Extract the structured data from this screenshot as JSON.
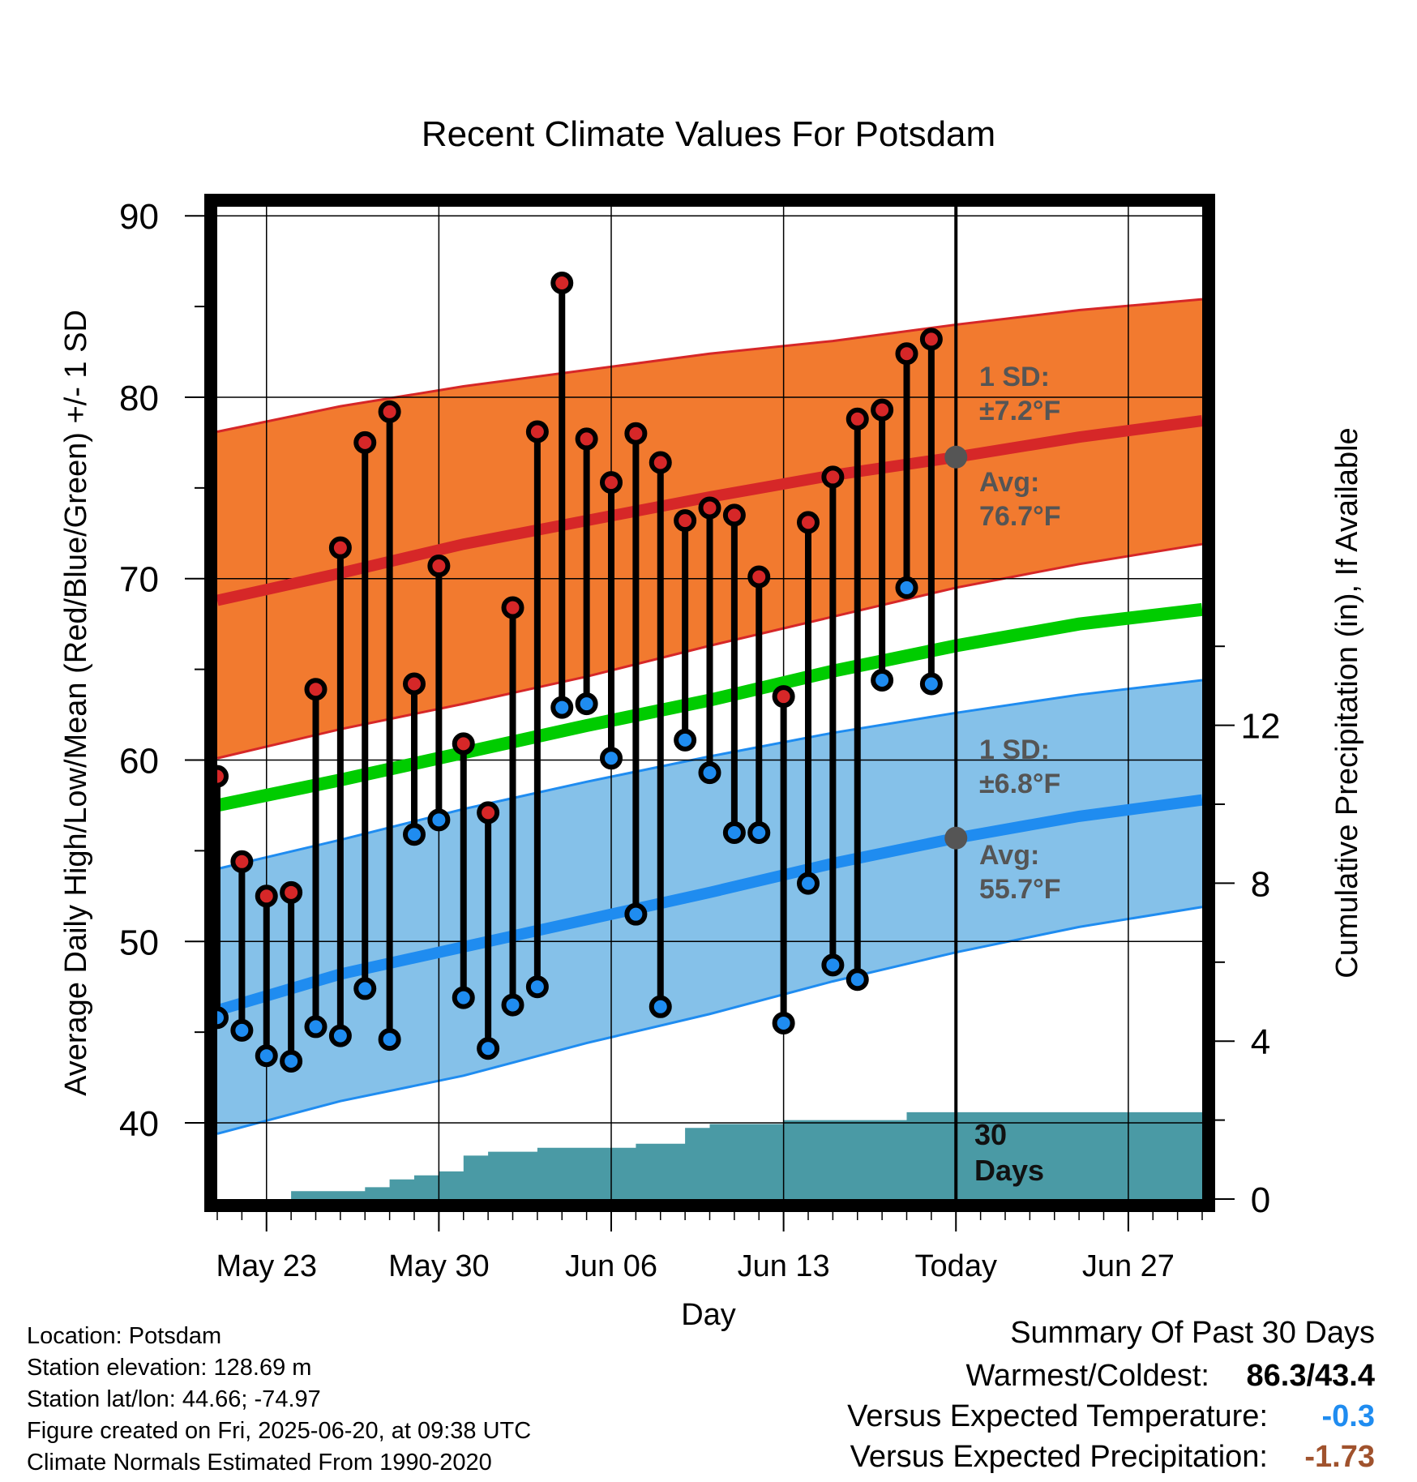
{
  "chart_data": {
    "type": "line",
    "title": "Recent Climate Values For Potsdam",
    "xlabel": "Day",
    "ylabel": "Average Daily High/Low/Mean (Red/Blue/Green) +/- 1 SD",
    "y2label": "Cumulative Precipitation (in), If Available",
    "ylim": [
      35.8,
      90.5
    ],
    "y2lim": [
      0,
      24
    ],
    "y_ticks": [
      "40",
      "50",
      "60",
      "70",
      "80",
      "90"
    ],
    "y2_ticks": [
      "0",
      "4",
      "8",
      "12"
    ],
    "x_start": "2025-05-21",
    "x_end": "2025-06-30",
    "x_tick_dates": [
      "2025-05-23",
      "2025-05-30",
      "2025-06-06",
      "2025-06-13",
      "2025-06-20",
      "2025-06-27"
    ],
    "x_tick_labels": [
      "May 23",
      "May 30",
      "Jun 06",
      "Jun 13",
      "Today",
      "Jun 27"
    ],
    "grid": true,
    "today": "2025-06-20",
    "observations": {
      "dates": [
        "2025-05-21",
        "2025-05-22",
        "2025-05-23",
        "2025-05-24",
        "2025-05-25",
        "2025-05-26",
        "2025-05-27",
        "2025-05-28",
        "2025-05-29",
        "2025-05-30",
        "2025-05-31",
        "2025-06-01",
        "2025-06-02",
        "2025-06-03",
        "2025-06-04",
        "2025-06-05",
        "2025-06-06",
        "2025-06-07",
        "2025-06-08",
        "2025-06-09",
        "2025-06-10",
        "2025-06-11",
        "2025-06-12",
        "2025-06-13",
        "2025-06-14",
        "2025-06-15",
        "2025-06-16",
        "2025-06-17",
        "2025-06-18",
        "2025-06-19"
      ],
      "highs": [
        59.1,
        54.4,
        52.5,
        52.7,
        63.9,
        71.7,
        77.5,
        79.2,
        64.2,
        70.7,
        60.9,
        57.1,
        68.4,
        78.1,
        86.3,
        77.7,
        75.3,
        78.0,
        76.4,
        73.2,
        73.9,
        73.5,
        70.1,
        63.5,
        73.1,
        75.6,
        78.8,
        79.3,
        82.4,
        83.2
      ],
      "lows": [
        45.8,
        45.1,
        43.7,
        43.4,
        45.3,
        44.8,
        47.4,
        44.6,
        55.9,
        56.7,
        46.9,
        44.1,
        46.5,
        47.5,
        62.9,
        63.1,
        60.1,
        51.5,
        46.4,
        61.1,
        59.3,
        56.0,
        56.0,
        45.5,
        53.2,
        48.7,
        47.9,
        64.4,
        69.5,
        64.2
      ]
    },
    "normals": {
      "dates": [
        "2025-05-21",
        "2025-05-26",
        "2025-05-31",
        "2025-06-05",
        "2025-06-10",
        "2025-06-15",
        "2025-06-20",
        "2025-06-25",
        "2025-06-30"
      ],
      "avg_high": [
        68.8,
        70.3,
        71.9,
        73.2,
        74.5,
        75.7,
        76.7,
        77.8,
        78.7
      ],
      "high_sd_upper": [
        78.1,
        79.5,
        80.6,
        81.5,
        82.4,
        83.1,
        84.0,
        84.8,
        85.4
      ],
      "high_sd_lower": [
        60.1,
        61.7,
        63.1,
        64.6,
        66.3,
        67.9,
        69.5,
        70.8,
        71.9
      ],
      "avg_mean": [
        57.5,
        58.9,
        60.4,
        61.9,
        63.3,
        64.9,
        66.3,
        67.5,
        68.3
      ],
      "avg_low": [
        46.2,
        48.2,
        49.7,
        51.2,
        52.7,
        54.3,
        55.7,
        56.9,
        57.8
      ],
      "low_sd_upper": [
        54.0,
        55.6,
        57.3,
        58.8,
        60.2,
        61.5,
        62.6,
        63.6,
        64.4
      ],
      "low_sd_lower": [
        39.4,
        41.2,
        42.6,
        44.4,
        46.0,
        47.8,
        49.4,
        50.8,
        51.9
      ]
    },
    "precipitation": {
      "dates": [
        "2025-05-21",
        "2025-05-24",
        "2025-05-27",
        "2025-05-28",
        "2025-05-29",
        "2025-05-30",
        "2025-05-31",
        "2025-06-01",
        "2025-06-03",
        "2025-06-05",
        "2025-06-07",
        "2025-06-08",
        "2025-06-09",
        "2025-06-10",
        "2025-06-12",
        "2025-06-13",
        "2025-06-14",
        "2025-06-16",
        "2025-06-17",
        "2025-06-18",
        "2025-06-19",
        "2025-06-30"
      ],
      "cumulative": [
        0.0,
        0.2,
        0.3,
        0.5,
        0.6,
        0.7,
        1.1,
        1.2,
        1.3,
        1.3,
        1.4,
        1.4,
        1.8,
        1.9,
        1.9,
        2.0,
        2.0,
        2.0,
        2.0,
        2.2,
        2.2,
        2.2
      ]
    },
    "annotations": {
      "high_sd_label": "1 SD:",
      "high_sd_value": "±7.2°F",
      "high_avg_label": "Avg:",
      "high_avg_value": "76.7°F",
      "high_avg": 76.7,
      "low_sd_label": "1 SD:",
      "low_sd_value": "±6.8°F",
      "low_avg_label": "Avg:",
      "low_avg_value": "55.7°F",
      "low_avg": 55.7,
      "days_label_1": "30",
      "days_label_2": "Days"
    },
    "colors": {
      "high_band": "#f27a2f",
      "high_line": "#d62728",
      "mean_line": "#00cc00",
      "low_band": "#85c1e9",
      "low_line": "#1f8cf0",
      "precip": "#4a9aa5",
      "high_marker": "#d62728",
      "low_marker": "#1f8cf0"
    }
  },
  "info": {
    "location": "Location: Potsdam",
    "elevation": "Station elevation: 128.69 m",
    "latlon": "Station lat/lon: 44.66; -74.97",
    "created": "Figure created on Fri, 2025-06-20, at 09:38 UTC",
    "normals": "Climate Normals Estimated From 1990-2020"
  },
  "summary": {
    "title": "Summary Of Past 30 Days",
    "warmest_label": "Warmest/Coldest:",
    "warmest_value": "86.3/43.4",
    "temp_label": "Versus Expected Temperature:",
    "temp_value": "-0.3",
    "temp_color": "#1f8cf0",
    "precip_label": "Versus Expected Precipitation:",
    "precip_value": "-1.73",
    "precip_color": "#a0522d"
  }
}
